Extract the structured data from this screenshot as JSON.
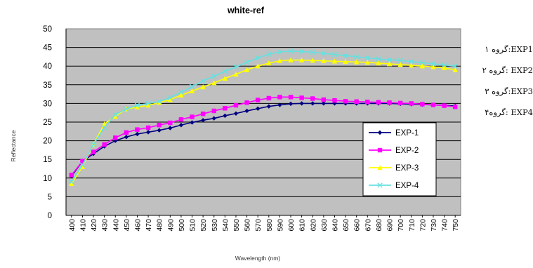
{
  "chart_data": {
    "type": "line",
    "title": "white-ref",
    "xlabel": "Wavelength (nm)",
    "ylabel": "Reflectance",
    "ylim": [
      0,
      50
    ],
    "yticks": [
      "0",
      "5",
      "10",
      "15",
      "20",
      "25",
      "30",
      "35",
      "40",
      "45",
      "50"
    ],
    "x": [
      "400",
      "410",
      "420",
      "430",
      "440",
      "450",
      "460",
      "470",
      "480",
      "490",
      "500",
      "510",
      "520",
      "530",
      "540",
      "550",
      "560",
      "570",
      "580",
      "590",
      "600",
      "610",
      "620",
      "630",
      "640",
      "650",
      "660",
      "670",
      "680",
      "690",
      "700",
      "710",
      "720",
      "730",
      "740",
      "750"
    ],
    "grid": "horizontal",
    "legend_position": "bottom-right inside plot",
    "plot_background": "#c0c0c0",
    "series": [
      {
        "name": "EXP-1",
        "color": "#000080",
        "marker": "diamond",
        "values": [
          10.5,
          14.5,
          16.5,
          18.5,
          20.0,
          21.0,
          21.8,
          22.3,
          22.8,
          23.4,
          24.2,
          24.9,
          25.5,
          26.0,
          26.7,
          27.3,
          28.0,
          28.6,
          29.2,
          29.6,
          29.9,
          30.0,
          30.0,
          30.0,
          30.0,
          30.0,
          30.0,
          30.0,
          30.0,
          30.0,
          29.9,
          29.8,
          29.7,
          29.6,
          29.5,
          29.3
        ]
      },
      {
        "name": "EXP-2",
        "color": "#ff00ff",
        "marker": "square",
        "values": [
          10.8,
          14.5,
          17.0,
          19.0,
          20.8,
          22.2,
          23.0,
          23.5,
          24.2,
          24.8,
          25.7,
          26.4,
          27.2,
          28.0,
          28.7,
          29.5,
          30.2,
          30.9,
          31.4,
          31.7,
          31.7,
          31.5,
          31.3,
          31.0,
          30.8,
          30.6,
          30.5,
          30.4,
          30.3,
          30.2,
          30.1,
          30.0,
          29.8,
          29.6,
          29.4,
          29.1
        ]
      },
      {
        "name": "EXP-3",
        "color": "#ffff00",
        "marker": "triangle",
        "values": [
          8.5,
          13.0,
          19.0,
          24.5,
          26.5,
          28.5,
          29.0,
          29.5,
          30.2,
          31.0,
          32.2,
          33.3,
          34.4,
          35.5,
          36.7,
          37.8,
          39.0,
          40.0,
          40.8,
          41.4,
          41.6,
          41.6,
          41.5,
          41.4,
          41.3,
          41.2,
          41.1,
          41.0,
          40.8,
          40.6,
          40.4,
          40.2,
          40.0,
          39.8,
          39.5,
          39.0
        ]
      },
      {
        "name": "EXP-4",
        "color": "#66e0e0",
        "marker": "cross",
        "values": [
          9.0,
          13.5,
          19.0,
          23.5,
          27.0,
          28.5,
          29.5,
          30.0,
          30.5,
          31.5,
          33.0,
          34.5,
          36.0,
          37.3,
          38.6,
          39.8,
          41.0,
          42.2,
          43.2,
          43.8,
          44.0,
          43.9,
          43.7,
          43.4,
          43.1,
          42.8,
          42.5,
          42.2,
          41.9,
          41.7,
          41.5,
          41.2,
          40.9,
          40.6,
          40.3,
          40.0
        ]
      }
    ]
  },
  "side_notes": [
    "EXP1:گروه ۱",
    "EXP2 :گروه ۲",
    "EXP3:گروه ۳",
    "EXP4 :گروه۴"
  ]
}
